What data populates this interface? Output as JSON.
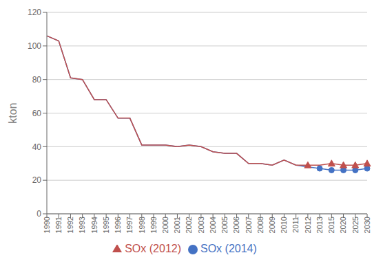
{
  "chart_data": {
    "type": "line",
    "ylabel": "kton",
    "categories": [
      "1990",
      "1991",
      "1992",
      "1993",
      "1994",
      "1995",
      "1996",
      "1997",
      "1998",
      "1999",
      "2000",
      "2001",
      "2002",
      "2003",
      "2004",
      "2005",
      "2006",
      "2007",
      "2008",
      "2009",
      "2010",
      "2011",
      "2012",
      "2013",
      "2015",
      "2020",
      "2025",
      "2030"
    ],
    "series": [
      {
        "name": "SOx (2014)",
        "color": "#4472C4",
        "marker": "circle",
        "marker_categories": [
          "2013",
          "2015",
          "2020",
          "2025",
          "2030"
        ],
        "values": [
          106,
          103,
          81,
          80,
          68,
          68,
          57,
          57,
          41,
          41,
          41,
          40,
          41,
          40,
          37,
          36,
          36,
          30,
          30,
          29,
          32,
          29,
          28,
          27,
          26,
          26,
          26,
          27
        ]
      },
      {
        "name": "SOx (2012)",
        "color": "#C0504D",
        "marker": "triangle",
        "marker_categories": [
          "2012",
          "2015",
          "2020",
          "2025",
          "2030"
        ],
        "values": [
          106,
          103,
          81,
          80,
          68,
          68,
          57,
          57,
          41,
          41,
          41,
          40,
          41,
          40,
          37,
          36,
          36,
          30,
          30,
          29,
          32,
          29,
          29,
          29,
          30,
          29,
          29,
          30
        ]
      }
    ],
    "ylim": [
      0,
      120
    ],
    "yticks": [
      0,
      20,
      40,
      60,
      80,
      100,
      120
    ],
    "grid": true,
    "legend": "bottom"
  }
}
